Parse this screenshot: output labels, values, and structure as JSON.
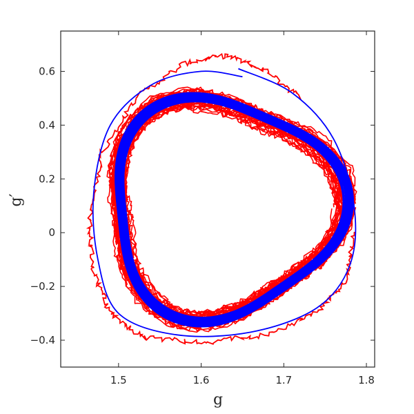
{
  "chart_data": {
    "type": "line",
    "title": "",
    "xlabel": "g",
    "ylabel": "g′",
    "xlim": [
      1.43,
      1.81
    ],
    "ylim": [
      -0.5,
      0.75
    ],
    "xticks": [
      1.5,
      1.6,
      1.7,
      1.8
    ],
    "xtick_labels": [
      "1.5",
      "1.6",
      "1.7",
      "1.8"
    ],
    "yticks": [
      -0.4,
      -0.2,
      0,
      0.2,
      0.4,
      0.6
    ],
    "ytick_labels": [
      "−0.4",
      "−0.2",
      "0",
      "0.2",
      "0.4",
      "0.6"
    ],
    "grid": false,
    "legend": "none",
    "series": [
      {
        "color": "#ff0000",
        "style": "noisy-limit-cycle",
        "cycle_shape": {
          "center": [
            1.625,
            0.09
          ],
          "g_min": 1.48,
          "g_max": 1.77,
          "gp_min": -0.33,
          "gp_max": 0.52
        },
        "transient_path": [
          [
            1.785,
            0.0
          ],
          [
            1.775,
            -0.18
          ],
          [
            1.74,
            -0.3
          ],
          [
            1.68,
            -0.38
          ],
          [
            1.6,
            -0.41
          ],
          [
            1.53,
            -0.39
          ],
          [
            1.49,
            -0.3
          ],
          [
            1.47,
            -0.15
          ],
          [
            1.465,
            0.05
          ],
          [
            1.48,
            0.3
          ],
          [
            1.52,
            0.5
          ],
          [
            1.58,
            0.63
          ],
          [
            1.63,
            0.66
          ],
          [
            1.68,
            0.6
          ],
          [
            1.72,
            0.5
          ]
        ]
      },
      {
        "color": "#0000ff",
        "style": "smooth-limit-cycle",
        "cycle_shape": {
          "center": [
            1.625,
            0.1
          ],
          "g_min": 1.48,
          "g_max": 1.775,
          "gp_min": -0.34,
          "gp_max": 0.53
        },
        "transient_path": [
          [
            1.645,
            0.61
          ],
          [
            1.71,
            0.52
          ],
          [
            1.76,
            0.35
          ],
          [
            1.785,
            0.1
          ],
          [
            1.78,
            -0.12
          ],
          [
            1.74,
            -0.28
          ],
          [
            1.66,
            -0.37
          ],
          [
            1.57,
            -0.38
          ],
          [
            1.5,
            -0.3
          ],
          [
            1.475,
            -0.1
          ],
          [
            1.47,
            0.15
          ],
          [
            1.49,
            0.4
          ],
          [
            1.54,
            0.55
          ],
          [
            1.6,
            0.6
          ],
          [
            1.65,
            0.58
          ]
        ]
      }
    ]
  }
}
